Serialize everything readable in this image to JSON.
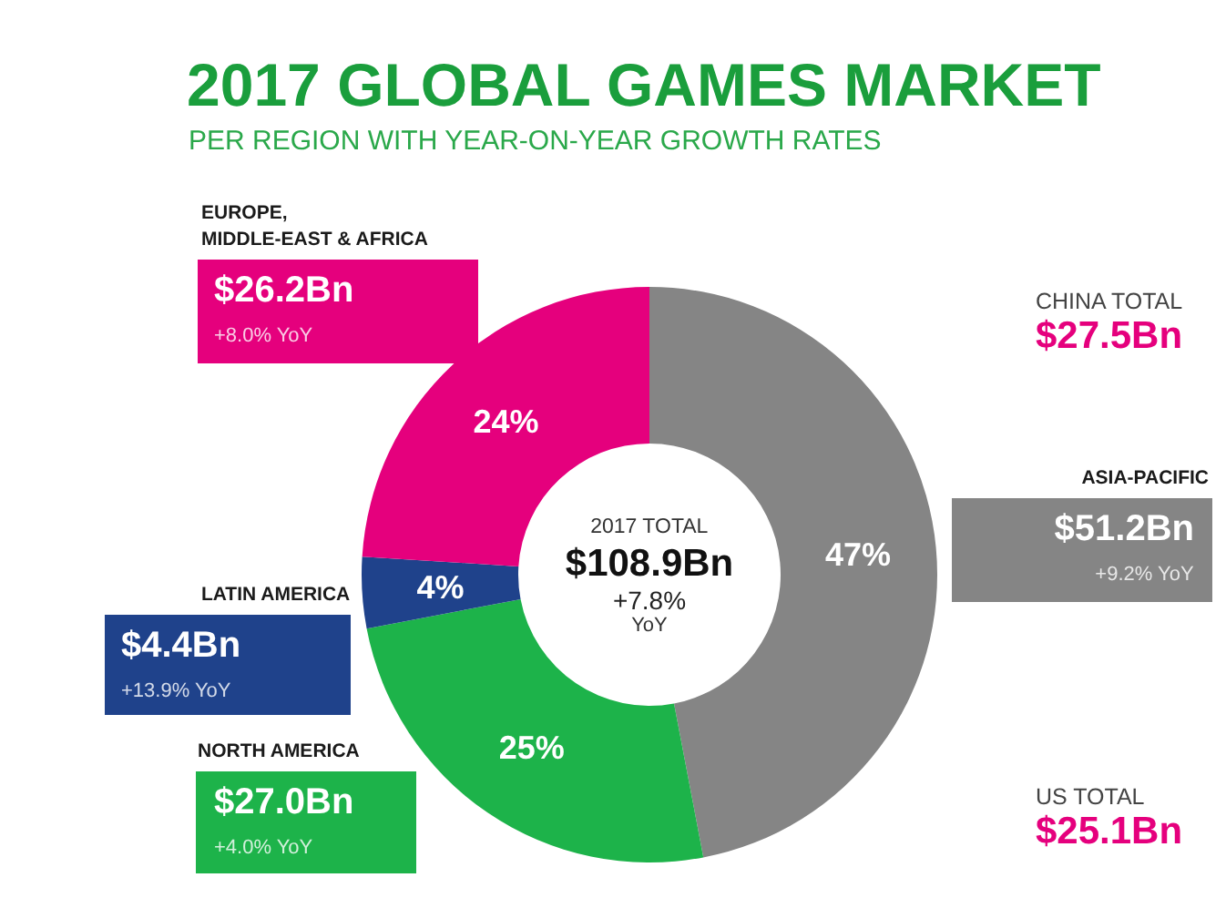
{
  "chart_data": {
    "type": "donut",
    "title": "2017 GLOBAL GAMES MARKET",
    "subtitle": "PER REGION WITH YEAR-ON-YEAR GROWTH RATES",
    "categories": [
      "ASIA-PACIFIC",
      "NORTH AMERICA",
      "LATIN AMERICA",
      "EUROPE,\nMIDDLE-EAST & AFRICA"
    ],
    "values": [
      47,
      25,
      4,
      24
    ],
    "colors": [
      "#858585",
      "#1db34a",
      "#1f428b",
      "#e5007d"
    ],
    "value_labels": [
      "47%",
      "25%",
      "4%",
      "24%"
    ],
    "annotations": [
      "$51.2Bn",
      "+9.2% YoY",
      "$27.0Bn",
      "+4.0% YoY",
      "$4.4Bn",
      "+13.9% YoY",
      "$26.2Bn",
      "+8.0% YoY",
      "2017 TOTAL",
      "$108.9Bn",
      "+7.8%",
      "YoY",
      "CHINA TOTAL",
      "$27.5Bn",
      "US TOTAL",
      "$25.1Bn"
    ]
  }
}
